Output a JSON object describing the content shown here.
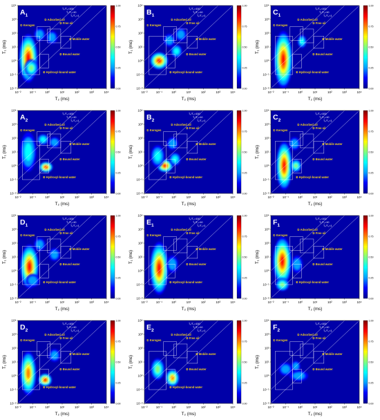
{
  "figure": {
    "colorbar": {
      "ticks": [
        "1.00",
        "0.75",
        "0.50",
        "0.25",
        "0.00"
      ],
      "colors": [
        "#00008f",
        "#0000ff",
        "#00a0ff",
        "#00ffff",
        "#7fff7f",
        "#ffff00",
        "#ff8000",
        "#ff0000",
        "#800000"
      ]
    },
    "background_color": "#0000a8",
    "label_color": "#f4d11f"
  },
  "chart_data": [
    {
      "id": "A1",
      "title_main": "A",
      "title_sub": "1",
      "type": "heatmap",
      "xlabel": "T₂ (ms)",
      "ylabel": "T₁ (ms)",
      "x_tick_exponents": [
        -2,
        -1,
        0,
        1,
        2,
        3,
        4
      ],
      "y_tick_exponents": [
        -2,
        -1,
        0,
        1,
        2,
        3,
        4
      ],
      "xlim": [
        0.01,
        10000
      ],
      "ylim": [
        0.01,
        10000
      ],
      "ratio_lines": [
        "T₁/T₂=100",
        "T₁/T₂=10",
        "T₁/T₂=1"
      ],
      "regions": [
        "① Kerogen",
        "② Adsorbed oil",
        "③ Free oil",
        "④ Mobile water",
        "⑤ Bound water",
        "⑥ Hydroxyl-bound water"
      ],
      "peaks": [
        {
          "t2": 0.05,
          "t1": 1.5,
          "intensity": 1.0,
          "spread_x": 0.3,
          "spread_y": 1.0
        },
        {
          "t2": 0.3,
          "t1": 80,
          "intensity": 0.35,
          "spread_x": 0.15,
          "spread_y": 0.2
        },
        {
          "t2": 2,
          "t1": 50,
          "intensity": 0.3,
          "spread_x": 0.15,
          "spread_y": 0.2
        },
        {
          "t2": 0.08,
          "t1": 0.3,
          "intensity": 0.5,
          "spread_x": 0.2,
          "spread_y": 0.3
        }
      ]
    },
    {
      "id": "B1",
      "title_main": "B",
      "title_sub": "1",
      "type": "heatmap",
      "xlabel": "T₂ (ms)",
      "ylabel": "T₁ (ms)",
      "x_tick_exponents": [
        -2,
        -1,
        0,
        1,
        2,
        3,
        4
      ],
      "y_tick_exponents": [
        -2,
        -1,
        0,
        1,
        2,
        3,
        4
      ],
      "xlim": [
        0.01,
        10000
      ],
      "ylim": [
        0.01,
        10000
      ],
      "ratio_lines": [
        "T₁/T₂=100",
        "T₁/T₂=10",
        "T₁/T₂=1"
      ],
      "regions": [
        "① Kerogen",
        "② Adsorbed oil",
        "③ Free oil",
        "④ Mobile water",
        "⑤ Bound water",
        "⑥ Hydroxyl-bound water"
      ],
      "peaks": [
        {
          "t2": 0.1,
          "t1": 1,
          "intensity": 1.0,
          "spread_x": 0.3,
          "spread_y": 0.3
        },
        {
          "t2": 0.5,
          "t1": 30,
          "intensity": 0.35,
          "spread_x": 0.15,
          "spread_y": 0.2
        },
        {
          "t2": 1.5,
          "t1": 5,
          "intensity": 0.4,
          "spread_x": 0.15,
          "spread_y": 0.2
        },
        {
          "t2": 3,
          "t1": 80,
          "intensity": 0.3,
          "spread_x": 0.15,
          "spread_y": 0.2
        }
      ]
    },
    {
      "id": "C1",
      "title_main": "C",
      "title_sub": "1",
      "type": "heatmap",
      "xlabel": "T₂ (ms)",
      "ylabel": "T₁ (ms)",
      "x_tick_exponents": [
        -2,
        -1,
        0,
        1,
        2,
        3,
        4
      ],
      "y_tick_exponents": [
        -2,
        -1,
        0,
        1,
        2,
        3,
        4
      ],
      "xlim": [
        0.01,
        10000
      ],
      "ylim": [
        0.01,
        10000
      ],
      "ratio_lines": [
        "T₁/T₂=100",
        "T₁/T₂=10",
        "T₁/T₂=1"
      ],
      "regions": [
        "① Kerogen",
        "② Adsorbed oil",
        "③ Free oil",
        "④ Mobile water",
        "⑤ Bound water",
        "⑥ Hydroxyl-bound water"
      ],
      "peaks": [
        {
          "t2": 0.07,
          "t1": 1.2,
          "intensity": 1.0,
          "spread_x": 0.3,
          "spread_y": 1.2
        },
        {
          "t2": 1.3,
          "t1": 25,
          "intensity": 0.4,
          "spread_x": 0.1,
          "spread_y": 0.2
        }
      ]
    },
    {
      "id": "A2",
      "title_main": "A",
      "title_sub": "2",
      "type": "heatmap",
      "xlabel": "T₂ (ms)",
      "ylabel": "T₁ (ms)",
      "x_tick_exponents": [
        -2,
        -1,
        0,
        1,
        2,
        3,
        4
      ],
      "y_tick_exponents": [
        -2,
        -1,
        0,
        1,
        2,
        3,
        4
      ],
      "xlim": [
        0.01,
        10000
      ],
      "ylim": [
        0.01,
        10000
      ],
      "ratio_lines": [
        "T₁/T₂=100",
        "T₁/T₂=10",
        "T₁/T₂=1"
      ],
      "regions": [
        "① Kerogen",
        "② Adsorbed oil",
        "③ Free oil",
        "④ Mobile water",
        "⑤ Bound water",
        "⑥ Hydroxyl-bound water"
      ],
      "peaks": [
        {
          "t2": 0.8,
          "t1": 0.8,
          "intensity": 1.0,
          "spread_x": 0.2,
          "spread_y": 0.15
        },
        {
          "t2": 0.05,
          "t1": 10,
          "intensity": 0.4,
          "spread_x": 0.25,
          "spread_y": 0.8
        },
        {
          "t2": 0.5,
          "t1": 80,
          "intensity": 0.4,
          "spread_x": 0.15,
          "spread_y": 0.15
        },
        {
          "t2": 3,
          "t1": 50,
          "intensity": 0.3,
          "spread_x": 0.15,
          "spread_y": 0.15
        }
      ]
    },
    {
      "id": "B2",
      "title_main": "B",
      "title_sub": "2",
      "type": "heatmap",
      "xlabel": "T₂ (ms)",
      "ylabel": "T₁ (ms)",
      "x_tick_exponents": [
        -2,
        -1,
        0,
        1,
        2,
        3,
        4
      ],
      "y_tick_exponents": [
        -2,
        -1,
        0,
        1,
        2,
        3,
        4
      ],
      "xlim": [
        0.01,
        10000
      ],
      "ylim": [
        0.01,
        10000
      ],
      "ratio_lines": [
        "T₁/T₂=100",
        "T₁/T₂=10",
        "T₁/T₂=1"
      ],
      "regions": [
        "① Kerogen",
        "② Adsorbed oil",
        "③ Free oil",
        "④ Mobile water",
        "⑤ Bound water",
        "⑥ Hydroxyl-bound water"
      ],
      "peaks": [
        {
          "t2": 0.25,
          "t1": 1.0,
          "intensity": 1.0,
          "spread_x": 0.25,
          "spread_y": 0.2
        },
        {
          "t2": 0.08,
          "t1": 5,
          "intensity": 0.4,
          "spread_x": 0.2,
          "spread_y": 0.4
        },
        {
          "t2": 1.2,
          "t1": 3,
          "intensity": 0.45,
          "spread_x": 0.15,
          "spread_y": 0.2
        },
        {
          "t2": 0.8,
          "t1": 40,
          "intensity": 0.3,
          "spread_x": 0.15,
          "spread_y": 0.2
        }
      ]
    },
    {
      "id": "C2",
      "title_main": "C",
      "title_sub": "2",
      "type": "heatmap",
      "xlabel": "T₂ (ms)",
      "ylabel": "T₁ (ms)",
      "x_tick_exponents": [
        -2,
        -1,
        0,
        1,
        2,
        3,
        4
      ],
      "y_tick_exponents": [
        -2,
        -1,
        0,
        1,
        2,
        3,
        4
      ],
      "xlim": [
        0.01,
        10000
      ],
      "ylim": [
        0.01,
        10000
      ],
      "ratio_lines": [
        "T₁/T₂=100",
        "T₁/T₂=10",
        "T₁/T₂=1"
      ],
      "regions": [
        "① Kerogen",
        "② Adsorbed oil",
        "③ Free oil",
        "④ Mobile water",
        "⑤ Bound water",
        "⑥ Hydroxyl-bound water"
      ],
      "peaks": [
        {
          "t2": 0.08,
          "t1": 1.0,
          "intensity": 1.0,
          "spread_x": 0.25,
          "spread_y": 1.0
        },
        {
          "t2": 0.5,
          "t1": 1.0,
          "intensity": 0.5,
          "spread_x": 0.15,
          "spread_y": 0.2
        },
        {
          "t2": 0.4,
          "t1": 40,
          "intensity": 0.35,
          "spread_x": 0.15,
          "spread_y": 0.2
        }
      ]
    },
    {
      "id": "D1",
      "title_main": "D",
      "title_sub": "1",
      "type": "heatmap",
      "xlabel": "T₂ (ms)",
      "ylabel": "T₁ (ms)",
      "x_tick_exponents": [
        -2,
        -1,
        0,
        1,
        2,
        3,
        4
      ],
      "y_tick_exponents": [
        -2,
        -1,
        0,
        1,
        2,
        3,
        4
      ],
      "xlim": [
        0.01,
        10000
      ],
      "ylim": [
        0.01,
        10000
      ],
      "ratio_lines": [
        "T₁/T₂=100",
        "T₁/T₂=10",
        "T₁/T₂=1"
      ],
      "regions": [
        "① Kerogen",
        "② Adsorbed oil",
        "③ Free oil",
        "④ Mobile water",
        "⑤ Bound water",
        "⑥ Hydroxyl-bound water"
      ],
      "peaks": [
        {
          "t2": 0.06,
          "t1": 2,
          "intensity": 1.0,
          "spread_x": 0.3,
          "spread_y": 0.9
        },
        {
          "t2": 0.3,
          "t1": 80,
          "intensity": 0.35,
          "spread_x": 0.15,
          "spread_y": 0.2
        },
        {
          "t2": 0.1,
          "t1": 0.2,
          "intensity": 0.35,
          "spread_x": 0.2,
          "spread_y": 0.2
        },
        {
          "t2": 3,
          "t1": 15,
          "intensity": 0.3,
          "spread_x": 0.15,
          "spread_y": 0.2
        }
      ]
    },
    {
      "id": "E1",
      "title_main": "E",
      "title_sub": "1",
      "type": "heatmap",
      "xlabel": "T₂ (ms)",
      "ylabel": "T₁ (ms)",
      "x_tick_exponents": [
        -2,
        -1,
        0,
        1,
        2,
        3,
        4
      ],
      "y_tick_exponents": [
        -2,
        -1,
        0,
        1,
        2,
        3,
        4
      ],
      "xlim": [
        0.01,
        10000
      ],
      "ylim": [
        0.01,
        10000
      ],
      "ratio_lines": [
        "T₁/T₂=100",
        "T₁/T₂=10",
        "T₁/T₂=1"
      ],
      "regions": [
        "① Kerogen",
        "② Adsorbed oil",
        "③ Free oil",
        "④ Mobile water",
        "⑤ Bound water",
        "⑥ Hydroxyl-bound water"
      ],
      "peaks": [
        {
          "t2": 0.1,
          "t1": 1.5,
          "intensity": 1.0,
          "spread_x": 0.3,
          "spread_y": 1.1
        },
        {
          "t2": 0.8,
          "t1": 3,
          "intensity": 0.3,
          "spread_x": 0.15,
          "spread_y": 0.3
        }
      ]
    },
    {
      "id": "F1",
      "title_main": "F",
      "title_sub": "1",
      "type": "heatmap",
      "xlabel": "T₂ (ms)",
      "ylabel": "T₁ (ms)",
      "x_tick_exponents": [
        -2,
        -1,
        0,
        1,
        2,
        3,
        4
      ],
      "y_tick_exponents": [
        -2,
        -1,
        0,
        1,
        2,
        3,
        4
      ],
      "xlim": [
        0.01,
        10000
      ],
      "ylim": [
        0.01,
        10000
      ],
      "ratio_lines": [
        "T₁/T₂=100",
        "T₁/T₂=10",
        "T₁/T₂=1"
      ],
      "regions": [
        "① Kerogen",
        "② Adsorbed oil",
        "③ Free oil",
        "④ Mobile water",
        "⑤ Bound water",
        "⑥ Hydroxyl-bound water"
      ],
      "peaks": [
        {
          "t2": 0.06,
          "t1": 5,
          "intensity": 1.0,
          "spread_x": 0.3,
          "spread_y": 1.0
        },
        {
          "t2": 0.06,
          "t1": 0.1,
          "intensity": 0.6,
          "spread_x": 0.2,
          "spread_y": 0.2
        },
        {
          "t2": 0.6,
          "t1": 3,
          "intensity": 0.35,
          "spread_x": 0.15,
          "spread_y": 0.3
        }
      ]
    },
    {
      "id": "D2",
      "title_main": "D",
      "title_sub": "2",
      "type": "heatmap",
      "xlabel": "T₂ (ms)",
      "ylabel": "T₁ (ms)",
      "x_tick_exponents": [
        -2,
        -1,
        0,
        1,
        2,
        3,
        4
      ],
      "y_tick_exponents": [
        -2,
        -1,
        0,
        1,
        2,
        3,
        4
      ],
      "xlim": [
        0.01,
        10000
      ],
      "ylim": [
        0.01,
        10000
      ],
      "ratio_lines": [
        "T₁/T₂=100",
        "T₁/T₂=10",
        "T₁/T₂=1"
      ],
      "regions": [
        "① Kerogen",
        "② Adsorbed oil",
        "③ Free oil",
        "④ Mobile water",
        "⑤ Bound water",
        "⑥ Hydroxyl-bound water"
      ],
      "peaks": [
        {
          "t2": 0.7,
          "t1": 0.5,
          "intensity": 1.0,
          "spread_x": 0.2,
          "spread_y": 0.2
        },
        {
          "t2": 0.05,
          "t1": 1.5,
          "intensity": 0.8,
          "spread_x": 0.25,
          "spread_y": 0.9
        },
        {
          "t2": 3,
          "t1": 30,
          "intensity": 0.3,
          "spread_x": 0.15,
          "spread_y": 0.2
        }
      ]
    },
    {
      "id": "E2",
      "title_main": "E",
      "title_sub": "2",
      "type": "heatmap",
      "xlabel": "T₂ (ms)",
      "ylabel": "T₁ (ms)",
      "x_tick_exponents": [
        -2,
        -1,
        0,
        1,
        2,
        3,
        4
      ],
      "y_tick_exponents": [
        -2,
        -1,
        0,
        1,
        2,
        3,
        4
      ],
      "xlim": [
        0.01,
        10000
      ],
      "ylim": [
        0.01,
        10000
      ],
      "ratio_lines": [
        "T₁/T₂=100",
        "T₁/T₂=10",
        "T₁/T₂=1"
      ],
      "regions": [
        "① Kerogen",
        "② Adsorbed oil",
        "③ Free oil",
        "④ Mobile water",
        "⑤ Bound water",
        "⑥ Hydroxyl-bound water"
      ],
      "peaks": [
        {
          "t2": 0.8,
          "t1": 0.7,
          "intensity": 0.9,
          "spread_x": 0.2,
          "spread_y": 0.3
        },
        {
          "t2": 0.08,
          "t1": 3,
          "intensity": 0.5,
          "spread_x": 0.2,
          "spread_y": 0.4
        }
      ]
    },
    {
      "id": "F2",
      "title_main": "F",
      "title_sub": "2",
      "type": "heatmap",
      "xlabel": "T₂ (ms)",
      "ylabel": "T₁ (ms)",
      "x_tick_exponents": [
        -2,
        -1,
        0,
        1,
        2,
        3,
        4
      ],
      "y_tick_exponents": [
        -2,
        -1,
        0,
        1,
        2,
        3,
        4
      ],
      "xlim": [
        0.01,
        10000
      ],
      "ylim": [
        0.01,
        10000
      ],
      "ratio_lines": [
        "T₁/T₂=100",
        "T₁/T₂=10",
        "T₁/T₂=1"
      ],
      "regions": [
        "① Kerogen",
        "② Adsorbed oil",
        "③ Free oil",
        "④ Mobile water",
        "⑤ Bound water"
      ],
      "peaks": [
        {
          "t2": 0.1,
          "t1": 3,
          "intensity": 0.3,
          "spread_x": 0.2,
          "spread_y": 0.2
        },
        {
          "t2": 0.8,
          "t1": 1,
          "intensity": 0.25,
          "spread_x": 0.3,
          "spread_y": 0.15
        },
        {
          "t2": 0.5,
          "t1": 5,
          "intensity": 0.2,
          "spread_x": 0.1,
          "spread_y": 0.15
        }
      ]
    }
  ]
}
